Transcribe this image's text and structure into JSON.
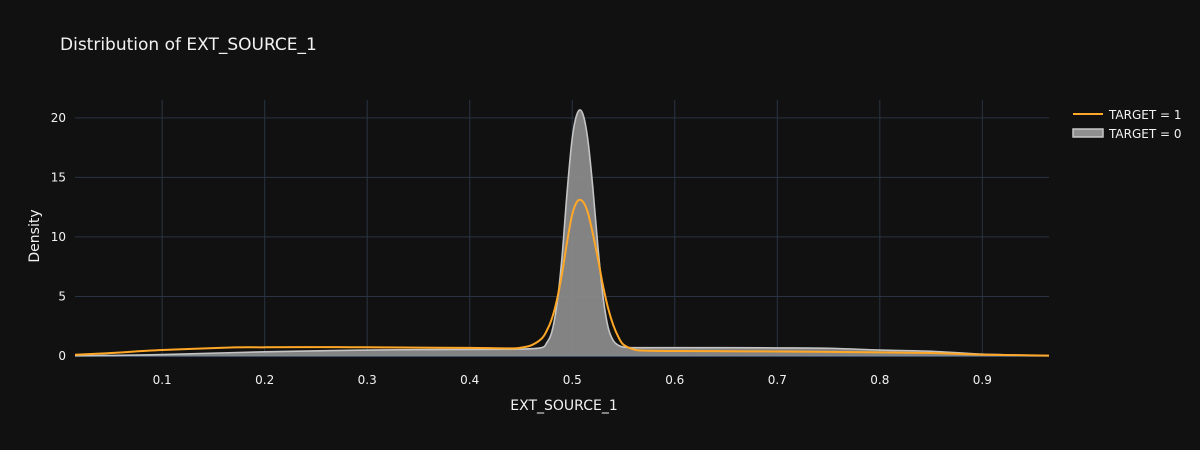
{
  "chart_data": {
    "type": "area",
    "title": "Distribution of EXT_SOURCE_1",
    "xlabel": "EXT_SOURCE_1",
    "ylabel": "Density",
    "xlim": [
      0.015,
      0.965
    ],
    "ylim": [
      0,
      21.5
    ],
    "xticks": [
      0.1,
      0.2,
      0.3,
      0.4,
      0.5,
      0.6,
      0.7,
      0.8,
      0.9
    ],
    "xtick_labels": [
      "0.1",
      "0.2",
      "0.3",
      "0.4",
      "0.5",
      "0.6",
      "0.7",
      "0.8",
      "0.9"
    ],
    "yticks": [
      0,
      5,
      10,
      15,
      20
    ],
    "ytick_labels": [
      "0",
      "5",
      "10",
      "15",
      "20"
    ],
    "grid": true,
    "legend_position": "top-right",
    "series": [
      {
        "name": "TARGET = 1",
        "color": "#FFA726",
        "style": "line",
        "x": [
          0.015,
          0.05,
          0.1,
          0.17,
          0.2,
          0.27,
          0.3,
          0.35,
          0.4,
          0.44,
          0.45,
          0.46,
          0.47,
          0.475,
          0.48,
          0.485,
          0.49,
          0.495,
          0.5,
          0.505,
          0.51,
          0.515,
          0.52,
          0.525,
          0.53,
          0.535,
          0.54,
          0.545,
          0.55,
          0.56,
          0.57,
          0.6,
          0.65,
          0.7,
          0.75,
          0.8,
          0.85,
          0.9,
          0.965
        ],
        "y": [
          0.1,
          0.25,
          0.5,
          0.72,
          0.73,
          0.75,
          0.73,
          0.7,
          0.68,
          0.64,
          0.7,
          0.9,
          1.45,
          2.1,
          3.1,
          4.7,
          6.9,
          9.6,
          11.9,
          13.0,
          13.0,
          12.1,
          10.3,
          8.2,
          5.9,
          4.0,
          2.6,
          1.6,
          0.95,
          0.55,
          0.45,
          0.42,
          0.4,
          0.38,
          0.35,
          0.3,
          0.25,
          0.12,
          0.03
        ]
      },
      {
        "name": "TARGET = 0",
        "color": "#A6A6A6",
        "style": "filled",
        "x": [
          0.015,
          0.05,
          0.1,
          0.2,
          0.3,
          0.4,
          0.45,
          0.47,
          0.475,
          0.48,
          0.485,
          0.49,
          0.495,
          0.5,
          0.505,
          0.51,
          0.515,
          0.52,
          0.525,
          0.53,
          0.535,
          0.54,
          0.545,
          0.55,
          0.56,
          0.6,
          0.65,
          0.7,
          0.75,
          0.8,
          0.85,
          0.9,
          0.965
        ],
        "y": [
          0.02,
          0.05,
          0.12,
          0.35,
          0.5,
          0.55,
          0.58,
          0.7,
          1.1,
          2.0,
          4.3,
          8.3,
          13.8,
          18.3,
          20.4,
          20.4,
          18.3,
          14.2,
          9.2,
          5.0,
          2.4,
          1.3,
          0.9,
          0.75,
          0.7,
          0.7,
          0.7,
          0.68,
          0.65,
          0.5,
          0.4,
          0.15,
          0.03
        ]
      }
    ]
  }
}
